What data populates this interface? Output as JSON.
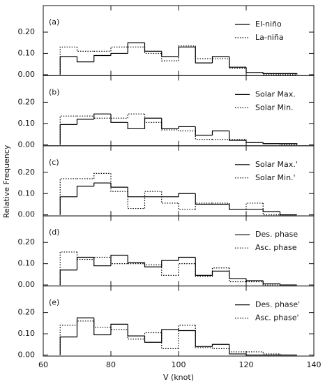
{
  "axes": {
    "xlabel": "V (knot)",
    "ylabel": "Relative Frequency"
  },
  "chart_data": [
    {
      "type": "histogram",
      "label": "(a)",
      "bins": [
        65,
        70,
        75,
        80,
        85,
        90,
        95,
        100,
        105,
        110,
        115,
        120,
        125,
        130,
        135
      ],
      "series": [
        {
          "name": "El-niño",
          "color": "#000000",
          "style": "solid",
          "values": [
            0.085,
            0.06,
            0.09,
            0.1,
            0.15,
            0.11,
            0.085,
            0.13,
            0.055,
            0.085,
            0.035,
            0.01,
            0.005,
            0.005
          ]
        },
        {
          "name": "La-niña",
          "color": "#000000",
          "style": "dotted",
          "values": [
            0.13,
            0.11,
            0.11,
            0.13,
            0.13,
            0.1,
            0.065,
            0.135,
            0.075,
            0.075,
            0.03,
            0.01,
            0,
            0
          ]
        }
      ],
      "xlim": [
        60,
        140
      ],
      "xticks": [
        60,
        80,
        100,
        120,
        140
      ],
      "show_xtick_labels": false,
      "ylim": [
        -0.005,
        0.325
      ],
      "yticks": [
        {
          "value": 0,
          "label": "0.00"
        },
        {
          "value": 0.1,
          "label": "0.10"
        },
        {
          "value": 0.2,
          "label": "0.20"
        }
      ]
    },
    {
      "type": "histogram",
      "label": "(b)",
      "bins": [
        65,
        70,
        75,
        80,
        85,
        90,
        95,
        100,
        105,
        110,
        115,
        120,
        125,
        130,
        135
      ],
      "series": [
        {
          "name": "Solar Max.",
          "color": "#000000",
          "style": "solid",
          "values": [
            0.095,
            0.12,
            0.145,
            0.105,
            0.075,
            0.125,
            0.075,
            0.085,
            0.045,
            0.065,
            0.02,
            0.01,
            0.005,
            0.005
          ]
        },
        {
          "name": "Solar Min.",
          "color": "#000000",
          "style": "dotted",
          "values": [
            0.135,
            0.135,
            0.125,
            0.125,
            0.145,
            0.105,
            0.07,
            0.065,
            0.025,
            0.025,
            0.025,
            0.01,
            0.005,
            0
          ]
        }
      ],
      "xlim": [
        60,
        140
      ],
      "xticks": [
        60,
        80,
        100,
        120,
        140
      ],
      "show_xtick_labels": false,
      "ylim": [
        -0.005,
        0.325
      ],
      "yticks": [
        {
          "value": 0,
          "label": "0.00"
        },
        {
          "value": 0.1,
          "label": "0.10"
        },
        {
          "value": 0.2,
          "label": "0.20"
        }
      ]
    },
    {
      "type": "histogram",
      "label": "(c)",
      "bins": [
        65,
        70,
        75,
        80,
        85,
        90,
        95,
        100,
        105,
        110,
        115,
        120,
        125,
        130,
        135
      ],
      "series": [
        {
          "name": "Solar Max.'",
          "color": "#000000",
          "style": "solid",
          "values": [
            0.085,
            0.135,
            0.15,
            0.13,
            0.085,
            0.085,
            0.085,
            0.1,
            0.05,
            0.05,
            0.025,
            0.025,
            0.015,
            0
          ]
        },
        {
          "name": "Solar Min.'",
          "color": "#000000",
          "style": "dotted",
          "values": [
            0.17,
            0.17,
            0.195,
            0.11,
            0.03,
            0.11,
            0.055,
            0.025,
            0.055,
            0.055,
            0.025,
            0.055,
            0,
            0
          ]
        }
      ],
      "xlim": [
        60,
        140
      ],
      "xticks": [
        60,
        80,
        100,
        120,
        140
      ],
      "show_xtick_labels": false,
      "ylim": [
        -0.005,
        0.325
      ],
      "yticks": [
        {
          "value": 0,
          "label": "0.00"
        },
        {
          "value": 0.1,
          "label": "0.10"
        },
        {
          "value": 0.2,
          "label": "0.20"
        }
      ]
    },
    {
      "type": "histogram",
      "label": "(d)",
      "bins": [
        65,
        70,
        75,
        80,
        85,
        90,
        95,
        100,
        105,
        110,
        115,
        120,
        125,
        130,
        135
      ],
      "series": [
        {
          "name": "Des. phase",
          "color": "#000000",
          "style": "solid",
          "values": [
            0.07,
            0.13,
            0.09,
            0.14,
            0.105,
            0.085,
            0.115,
            0.13,
            0.045,
            0.065,
            0.03,
            0.02,
            0.005,
            0
          ]
        },
        {
          "name": "Asc. phase",
          "color": "#000000",
          "style": "dotted",
          "values": [
            0.155,
            0.12,
            0.13,
            0.1,
            0.1,
            0.095,
            0.045,
            0.1,
            0.04,
            0.08,
            0.015,
            0.015,
            0,
            0
          ]
        }
      ],
      "xlim": [
        60,
        140
      ],
      "xticks": [
        60,
        80,
        100,
        120,
        140
      ],
      "show_xtick_labels": false,
      "ylim": [
        -0.005,
        0.325
      ],
      "yticks": [
        {
          "value": 0,
          "label": "0.00"
        },
        {
          "value": 0.1,
          "label": "0.10"
        },
        {
          "value": 0.2,
          "label": "0.20"
        }
      ]
    },
    {
      "type": "histogram",
      "label": "(e)",
      "bins": [
        65,
        70,
        75,
        80,
        85,
        90,
        95,
        100,
        105,
        110,
        115,
        120,
        125,
        130,
        135
      ],
      "series": [
        {
          "name": "Des. phase'",
          "color": "#000000",
          "style": "solid",
          "values": [
            0.085,
            0.175,
            0.095,
            0.145,
            0.09,
            0.06,
            0.12,
            0.115,
            0.04,
            0.05,
            0.005,
            0,
            0,
            0
          ]
        },
        {
          "name": "Asc. phase'",
          "color": "#000000",
          "style": "dotted",
          "values": [
            0.14,
            0.16,
            0.13,
            0.12,
            0.075,
            0.105,
            0.03,
            0.14,
            0.035,
            0.03,
            0.015,
            0.015,
            0.005,
            0
          ]
        }
      ],
      "xlim": [
        60,
        140
      ],
      "xticks": [
        60,
        80,
        100,
        120,
        140
      ],
      "show_xtick_labels": true,
      "ylim": [
        -0.005,
        0.325
      ],
      "yticks": [
        {
          "value": 0,
          "label": "0.00"
        },
        {
          "value": 0.1,
          "label": "0.10"
        },
        {
          "value": 0.2,
          "label": "0.20"
        }
      ]
    }
  ]
}
